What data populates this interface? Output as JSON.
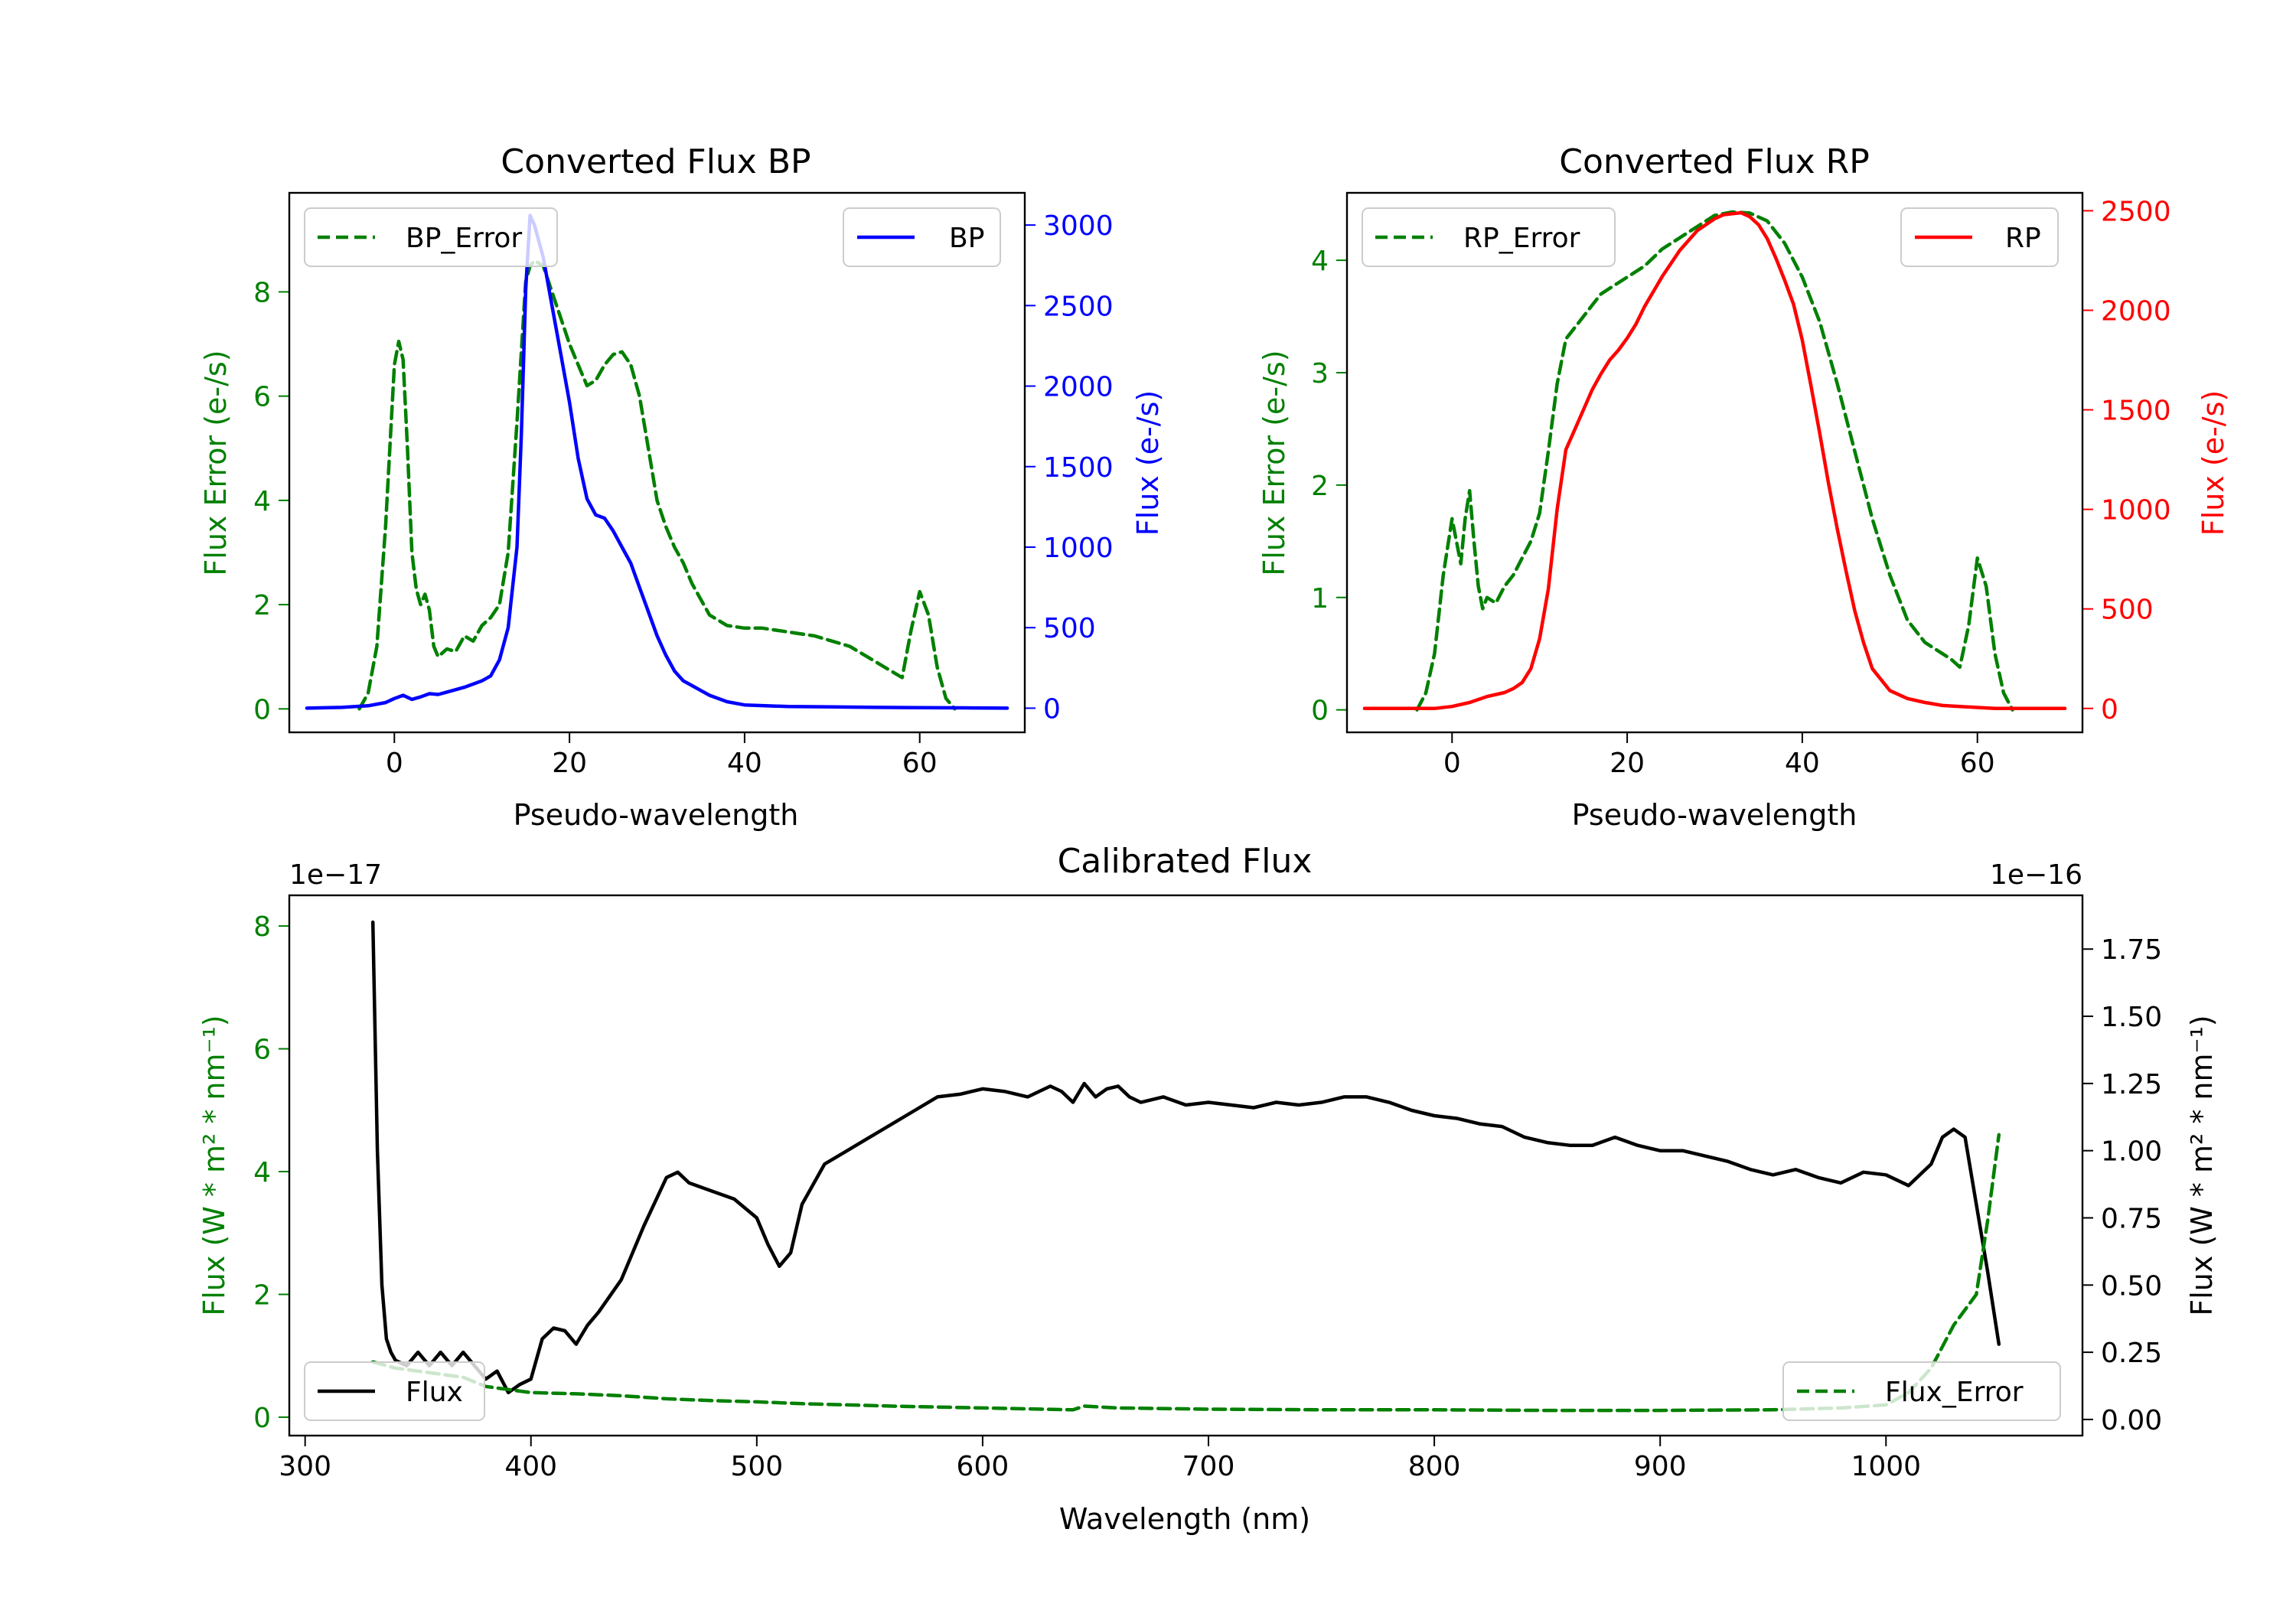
{
  "colors": {
    "bp": "#0000ff",
    "rp": "#ff0000",
    "error": "#008000",
    "flux": "#000000"
  },
  "chart_data": [
    {
      "type": "line",
      "title": "Converted Flux BP",
      "xlabel": "Pseudo-wavelength",
      "ylabel_left": "Flux Error (e-/s)",
      "ylabel_right": "Flux (e-/s)",
      "xlim": [
        -12,
        72
      ],
      "ylim_left": [
        -0.45,
        9.9
      ],
      "ylim_right": [
        -150,
        3200
      ],
      "xticks": [
        0,
        20,
        40,
        60
      ],
      "yticks_left": [
        0,
        2,
        4,
        6,
        8
      ],
      "yticks_right": [
        0,
        500,
        1000,
        1500,
        2000,
        2500,
        3000
      ],
      "legend": {
        "left": "top-left",
        "right": "top-right"
      },
      "series": [
        {
          "name": "BP_Error",
          "axis": "left",
          "style": "dashed",
          "color": "#008000",
          "x": [
            -4,
            -3,
            -2,
            -1,
            0,
            0.5,
            1,
            1.5,
            2,
            2.5,
            3,
            3.5,
            4,
            4.5,
            5,
            6,
            7,
            8,
            9,
            10,
            11,
            12,
            13,
            14,
            15,
            15.5,
            16,
            17,
            18,
            19,
            20,
            21,
            22,
            23,
            24,
            25,
            26,
            27,
            28,
            29,
            30,
            31,
            32,
            33,
            34,
            35,
            36,
            37,
            38,
            40,
            42,
            44,
            46,
            48,
            50,
            52,
            54,
            56,
            57,
            58,
            59,
            60,
            61,
            62,
            63,
            64
          ],
          "values": [
            0,
            0.3,
            1.2,
            3.5,
            6.6,
            7.05,
            6.7,
            5.0,
            3.0,
            2.3,
            2.0,
            2.2,
            1.9,
            1.2,
            1.0,
            1.15,
            1.1,
            1.4,
            1.3,
            1.6,
            1.75,
            2.0,
            3.0,
            5.5,
            8.2,
            8.5,
            8.6,
            8.5,
            8.0,
            7.5,
            7.0,
            6.6,
            6.2,
            6.3,
            6.6,
            6.8,
            6.85,
            6.6,
            6.0,
            5.0,
            4.0,
            3.5,
            3.1,
            2.8,
            2.4,
            2.1,
            1.8,
            1.7,
            1.6,
            1.55,
            1.55,
            1.5,
            1.45,
            1.4,
            1.3,
            1.2,
            1.0,
            0.8,
            0.7,
            0.6,
            1.5,
            2.25,
            1.8,
            0.8,
            0.2,
            0
          ],
          "label": "BP_Error"
        },
        {
          "name": "BP",
          "axis": "right",
          "style": "solid",
          "color": "#0000ff",
          "x": [
            -10,
            -6,
            -3,
            -1,
            0,
            1,
            2,
            3,
            4,
            5,
            6,
            8,
            10,
            11,
            12,
            13,
            14,
            14.5,
            15,
            15.5,
            16,
            17,
            18,
            19,
            20,
            21,
            22,
            23,
            24,
            25,
            26,
            27,
            28,
            29,
            30,
            31,
            32,
            33,
            34,
            35,
            36,
            38,
            40,
            45,
            50,
            55,
            60,
            65,
            70
          ],
          "values": [
            0,
            5,
            15,
            35,
            60,
            80,
            55,
            70,
            90,
            85,
            100,
            130,
            170,
            200,
            300,
            500,
            1000,
            1700,
            2600,
            3060,
            3000,
            2800,
            2500,
            2200,
            1900,
            1550,
            1300,
            1200,
            1180,
            1100,
            1000,
            900,
            750,
            600,
            450,
            330,
            230,
            170,
            140,
            110,
            80,
            40,
            20,
            10,
            8,
            5,
            3,
            2,
            0
          ],
          "label": "BP"
        }
      ]
    },
    {
      "type": "line",
      "title": "Converted Flux RP",
      "xlabel": "Pseudo-wavelength",
      "ylabel_left": "Flux Error (e-/s)",
      "ylabel_right": "Flux (e-/s)",
      "xlim": [
        -12,
        72
      ],
      "ylim_left": [
        -0.2,
        4.6
      ],
      "ylim_right": [
        -120,
        2590
      ],
      "xticks": [
        0,
        20,
        40,
        60
      ],
      "yticks_left": [
        0,
        1,
        2,
        3,
        4
      ],
      "yticks_right": [
        0,
        500,
        1000,
        1500,
        2000,
        2500
      ],
      "legend": {
        "left": "top-left",
        "right": "top-right"
      },
      "series": [
        {
          "name": "RP_Error",
          "axis": "left",
          "style": "dashed",
          "color": "#008000",
          "x": [
            -4,
            -3,
            -2,
            -1,
            0,
            0.5,
            1,
            1.5,
            2,
            2.5,
            3,
            3.5,
            4,
            5,
            6,
            7,
            8,
            9,
            10,
            11,
            12,
            13,
            14,
            15,
            16,
            17,
            18,
            19,
            20,
            22,
            24,
            26,
            28,
            30,
            32,
            34,
            36,
            38,
            40,
            42,
            44,
            46,
            48,
            50,
            52,
            54,
            56,
            57,
            58,
            59,
            60,
            61,
            62,
            63,
            64
          ],
          "values": [
            0,
            0.15,
            0.5,
            1.2,
            1.7,
            1.5,
            1.3,
            1.7,
            1.95,
            1.5,
            1.1,
            0.9,
            1.0,
            0.95,
            1.1,
            1.2,
            1.35,
            1.5,
            1.75,
            2.3,
            2.9,
            3.3,
            3.4,
            3.5,
            3.6,
            3.7,
            3.75,
            3.8,
            3.85,
            3.95,
            4.1,
            4.2,
            4.3,
            4.4,
            4.43,
            4.42,
            4.35,
            4.15,
            3.85,
            3.45,
            2.9,
            2.3,
            1.7,
            1.2,
            0.8,
            0.6,
            0.5,
            0.45,
            0.38,
            0.75,
            1.35,
            1.1,
            0.5,
            0.15,
            0
          ],
          "label": "RP_Error"
        },
        {
          "name": "RP",
          "axis": "right",
          "style": "solid",
          "color": "#ff0000",
          "x": [
            -10,
            -5,
            -2,
            0,
            2,
            4,
            6,
            7,
            8,
            9,
            10,
            11,
            12,
            13,
            14,
            15,
            16,
            17,
            18,
            19,
            20,
            21,
            22,
            24,
            26,
            28,
            30,
            31,
            32,
            33,
            34,
            35,
            36,
            37,
            38,
            39,
            40,
            41,
            42,
            43,
            44,
            45,
            46,
            47,
            48,
            50,
            52,
            54,
            56,
            58,
            60,
            62,
            65,
            70
          ],
          "values": [
            0,
            0,
            0,
            10,
            30,
            60,
            80,
            100,
            130,
            200,
            350,
            600,
            1000,
            1300,
            1400,
            1500,
            1600,
            1680,
            1750,
            1800,
            1860,
            1930,
            2020,
            2170,
            2300,
            2400,
            2460,
            2480,
            2485,
            2490,
            2470,
            2430,
            2360,
            2260,
            2150,
            2030,
            1850,
            1620,
            1380,
            1130,
            900,
            690,
            490,
            330,
            200,
            90,
            50,
            30,
            15,
            10,
            5,
            0,
            0,
            0
          ],
          "label": "RP"
        }
      ]
    },
    {
      "type": "line",
      "title": "Calibrated Flux",
      "xlabel": "Wavelength (nm)",
      "ylabel_left": "Flux (W * m² * nm⁻¹)",
      "ylabel_right": "Flux (W * m² * nm⁻¹)",
      "offset_left": "1e−17",
      "offset_right": "1e−16",
      "xlim": [
        293,
        1087
      ],
      "ylim_left": [
        -0.3,
        8.5
      ],
      "ylim_right": [
        -0.06,
        1.95
      ],
      "xticks": [
        300,
        400,
        500,
        600,
        700,
        800,
        900,
        1000
      ],
      "yticks_left": [
        0,
        2,
        4,
        6,
        8
      ],
      "yticks_right": [
        0.0,
        0.25,
        0.5,
        0.75,
        1.0,
        1.25,
        1.5,
        1.75
      ],
      "yticklabels_right": [
        "0.00",
        "0.25",
        "0.50",
        "0.75",
        "1.00",
        "1.25",
        "1.50",
        "1.75"
      ],
      "legend": {
        "left": "bottom-left",
        "right": "bottom-right"
      },
      "series": [
        {
          "name": "Flux",
          "axis": "right",
          "style": "solid",
          "color": "#000000",
          "x": [
            330,
            332,
            334,
            336,
            338,
            340,
            345,
            350,
            355,
            360,
            365,
            370,
            375,
            380,
            385,
            390,
            395,
            400,
            405,
            410,
            415,
            420,
            425,
            430,
            440,
            450,
            460,
            465,
            470,
            480,
            490,
            500,
            505,
            510,
            515,
            520,
            530,
            540,
            550,
            560,
            570,
            580,
            590,
            600,
            610,
            620,
            630,
            635,
            640,
            645,
            650,
            655,
            660,
            665,
            670,
            680,
            690,
            700,
            710,
            720,
            730,
            740,
            750,
            760,
            770,
            780,
            790,
            800,
            810,
            820,
            830,
            840,
            850,
            860,
            870,
            880,
            890,
            900,
            910,
            920,
            930,
            940,
            950,
            960,
            970,
            980,
            990,
            1000,
            1010,
            1020,
            1025,
            1030,
            1035,
            1040,
            1045,
            1050
          ],
          "values": [
            1.85,
            1.0,
            0.5,
            0.3,
            0.25,
            0.22,
            0.2,
            0.25,
            0.2,
            0.25,
            0.2,
            0.25,
            0.2,
            0.15,
            0.18,
            0.1,
            0.13,
            0.15,
            0.3,
            0.34,
            0.33,
            0.28,
            0.35,
            0.4,
            0.52,
            0.72,
            0.9,
            0.92,
            0.88,
            0.85,
            0.82,
            0.75,
            0.65,
            0.57,
            0.62,
            0.8,
            0.95,
            1.0,
            1.05,
            1.1,
            1.15,
            1.2,
            1.21,
            1.23,
            1.22,
            1.2,
            1.24,
            1.22,
            1.18,
            1.25,
            1.2,
            1.23,
            1.24,
            1.2,
            1.18,
            1.2,
            1.17,
            1.18,
            1.17,
            1.16,
            1.18,
            1.17,
            1.18,
            1.2,
            1.2,
            1.18,
            1.15,
            1.13,
            1.12,
            1.1,
            1.09,
            1.05,
            1.03,
            1.02,
            1.02,
            1.05,
            1.02,
            1.0,
            1.0,
            0.98,
            0.96,
            0.93,
            0.91,
            0.93,
            0.9,
            0.88,
            0.92,
            0.91,
            0.87,
            0.95,
            1.05,
            1.08,
            1.05,
            0.8,
            0.55,
            0.28
          ],
          "label": "Flux"
        },
        {
          "name": "Flux_Error",
          "axis": "left",
          "style": "dashed",
          "color": "#008000",
          "x": [
            330,
            340,
            350,
            360,
            370,
            380,
            390,
            400,
            420,
            440,
            460,
            480,
            500,
            520,
            540,
            560,
            600,
            640,
            645,
            660,
            700,
            750,
            800,
            850,
            900,
            950,
            980,
            1000,
            1010,
            1020,
            1030,
            1040,
            1045,
            1050
          ],
          "values": [
            0.9,
            0.8,
            0.75,
            0.7,
            0.65,
            0.5,
            0.45,
            0.4,
            0.38,
            0.35,
            0.3,
            0.27,
            0.25,
            0.22,
            0.2,
            0.18,
            0.15,
            0.12,
            0.18,
            0.15,
            0.13,
            0.12,
            0.12,
            0.11,
            0.11,
            0.12,
            0.15,
            0.2,
            0.4,
            0.8,
            1.5,
            2.0,
            3.2,
            4.6
          ],
          "label": "Flux_Error"
        }
      ]
    }
  ]
}
